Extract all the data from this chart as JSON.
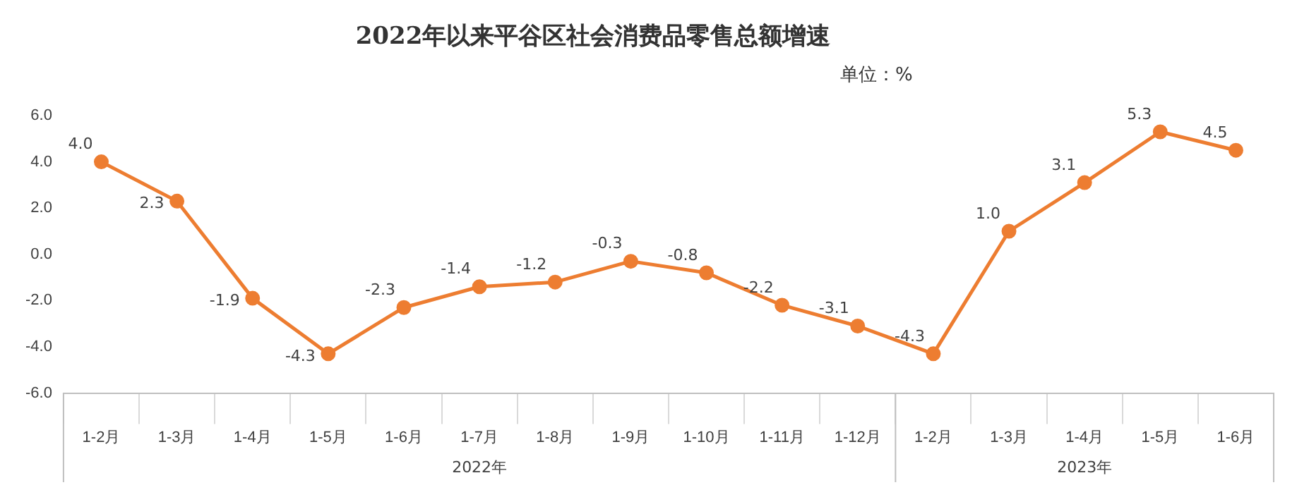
{
  "chart_data": {
    "type": "line",
    "title": "2022年以来平谷区社会消费品零售总额增速",
    "subtitle": "单位：%",
    "categories": [
      "1-2月",
      "1-3月",
      "1-4月",
      "1-5月",
      "1-6月",
      "1-7月",
      "1-8月",
      "1-9月",
      "1-10月",
      "1-11月",
      "1-12月",
      "1-2月",
      "1-3月",
      "1-4月",
      "1-5月",
      "1-6月"
    ],
    "series": [
      {
        "color": "#ed7d31",
        "values": [
          4.0,
          2.3,
          -1.9,
          -4.3,
          -2.3,
          -1.4,
          -1.2,
          -0.3,
          -0.8,
          -2.2,
          -3.1,
          -4.3,
          1.0,
          3.1,
          5.3,
          4.5
        ],
        "value_labels": [
          "4.0",
          "2.3",
          "-1.9",
          "-4.3",
          "-2.3",
          "-1.4",
          "-1.2",
          "-0.3",
          "-0.8",
          "-2.2",
          "-3.1",
          "-4.3",
          "1.0",
          "3.1",
          "5.3",
          "4.5"
        ]
      }
    ],
    "annotations": [
      "2022年",
      "2023年"
    ],
    "ylim": [
      -6,
      6
    ],
    "yticks": [
      {
        "value": -6,
        "label": "-6.0"
      },
      {
        "value": -4,
        "label": "-4.0"
      },
      {
        "value": -2,
        "label": "-2.0"
      },
      {
        "value": 0,
        "label": "0.0"
      },
      {
        "value": 2,
        "label": "2.0"
      },
      {
        "value": 4,
        "label": "4.0"
      },
      {
        "value": 6,
        "label": "6.0"
      }
    ],
    "marker": "circle",
    "line_style": "solid",
    "grid": false,
    "legend": false
  }
}
